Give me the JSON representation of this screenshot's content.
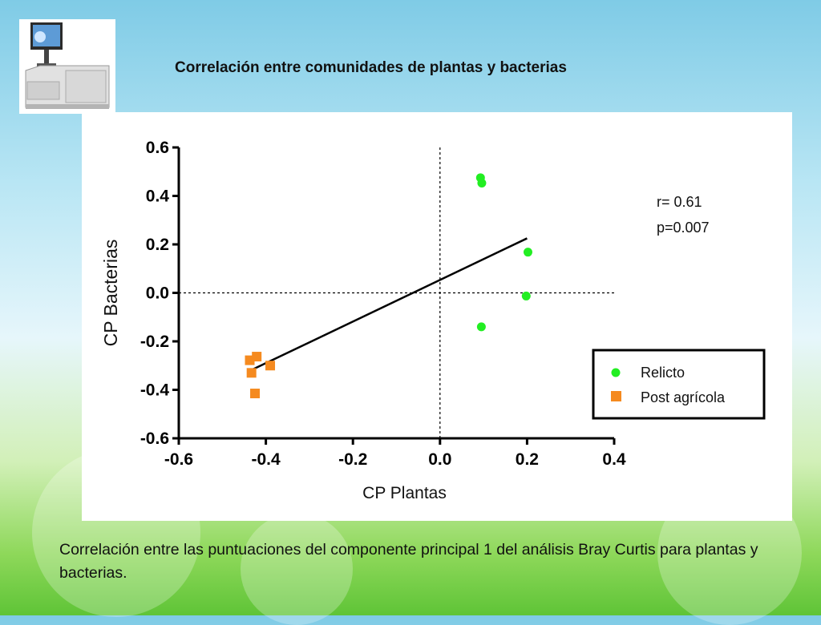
{
  "slide_title": "Correlación entre comunidades de plantas y bacterias",
  "caption": "Correlación entre las puntuaciones del componente principal 1 del análisis Bray Curtis para plantas y bacterias.",
  "icons": {
    "instrument": "lab-instrument-icon"
  },
  "colors": {
    "relicto": "#22ee22",
    "post_agricola": "#f58a1f",
    "regression": "#000000"
  },
  "chart_data": {
    "type": "scatter",
    "xlabel": "CP Plantas",
    "ylabel": "CP Bacterias",
    "xlim": [
      -0.6,
      0.4
    ],
    "ylim": [
      -0.6,
      0.6
    ],
    "xticks": [
      -0.6,
      -0.4,
      -0.2,
      0.0,
      0.2,
      0.4
    ],
    "yticks": [
      -0.6,
      -0.4,
      -0.2,
      0.0,
      0.2,
      0.4,
      0.6
    ],
    "xtick_labels": [
      "-0.6",
      "-0.4",
      "-0.2",
      "0.0",
      "0.2",
      "0.4"
    ],
    "ytick_labels": [
      "-0.6",
      "-0.4",
      "-0.2",
      "0.0",
      "0.2",
      "0.4",
      "0.6"
    ],
    "grid": false,
    "reference_lines": {
      "x": 0.0,
      "y": 0.0,
      "style": "dotted"
    },
    "series": [
      {
        "name": "Relicto",
        "marker": "circle",
        "points": [
          [
            0.093,
            0.475
          ],
          [
            0.096,
            0.453
          ],
          [
            0.202,
            0.168
          ],
          [
            0.198,
            -0.013
          ],
          [
            0.095,
            -0.14
          ]
        ]
      },
      {
        "name": "Post agrícola",
        "marker": "square",
        "points": [
          [
            -0.437,
            -0.278
          ],
          [
            -0.421,
            -0.263
          ],
          [
            -0.433,
            -0.33
          ],
          [
            -0.39,
            -0.3
          ],
          [
            -0.425,
            -0.415
          ]
        ]
      }
    ],
    "regression_line": {
      "x": [
        -0.435,
        0.2
      ],
      "y": [
        -0.32,
        0.225
      ]
    },
    "annotations": [
      "r= 0.61",
      "p=0.007"
    ],
    "legend": {
      "position": "bottom-right",
      "boxed": true
    }
  }
}
